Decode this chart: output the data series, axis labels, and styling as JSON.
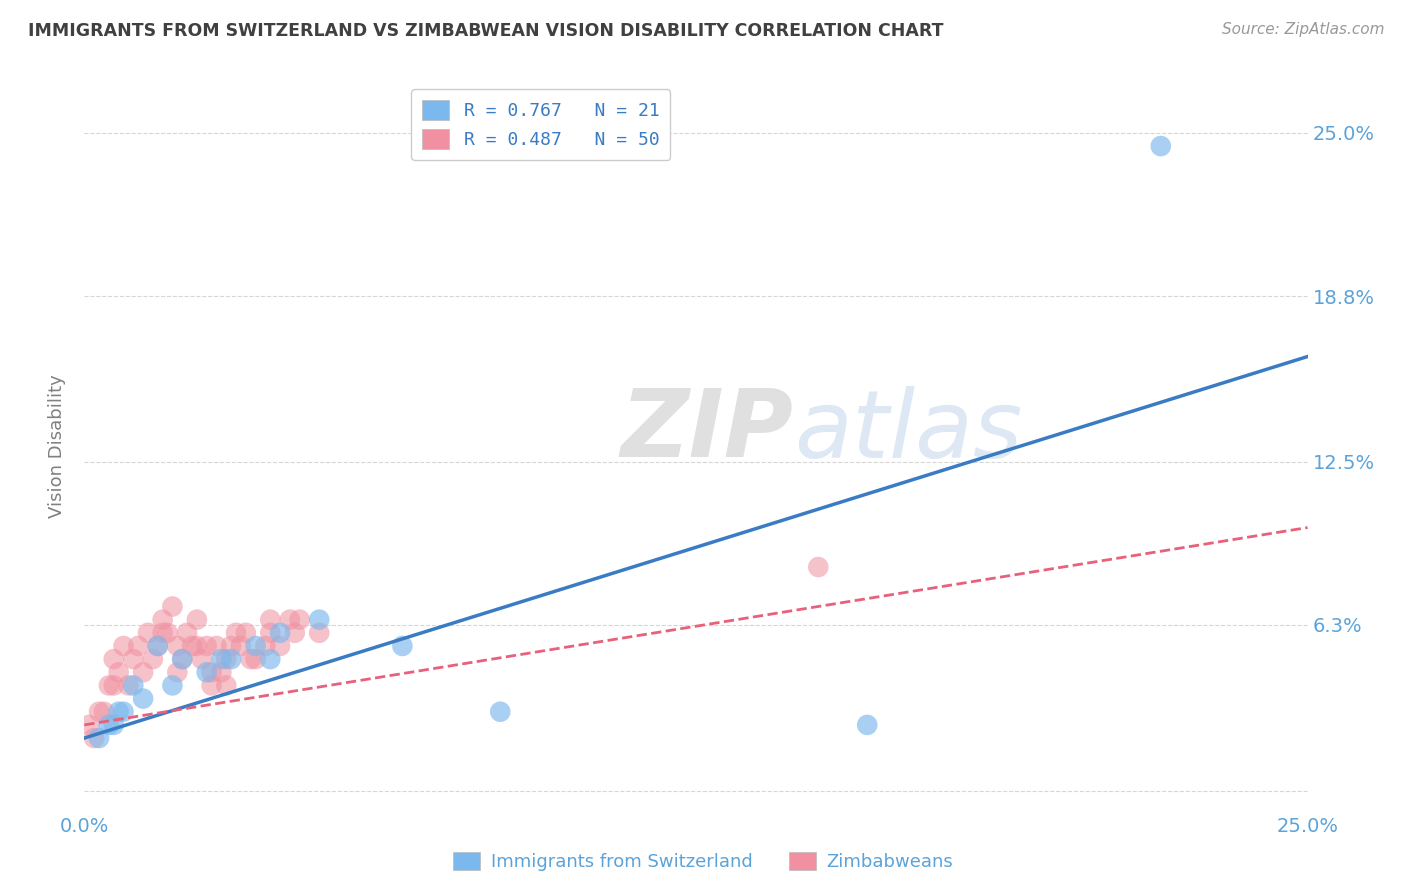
{
  "title": "IMMIGRANTS FROM SWITZERLAND VS ZIMBABWEAN VISION DISABILITY CORRELATION CHART",
  "source": "Source: ZipAtlas.com",
  "ylabel": "Vision Disability",
  "x_min": 0.0,
  "x_max": 0.25,
  "y_min": -0.008,
  "y_max": 0.27,
  "y_ticks": [
    0.0,
    0.063,
    0.125,
    0.188,
    0.25
  ],
  "y_tick_labels": [
    "",
    "6.3%",
    "12.5%",
    "18.8%",
    "25.0%"
  ],
  "x_ticks": [
    0.0,
    0.0625,
    0.125,
    0.1875,
    0.25
  ],
  "x_tick_labels": [
    "0.0%",
    "",
    "",
    "",
    "25.0%"
  ],
  "blue_R": 0.767,
  "blue_N": 21,
  "pink_R": 0.487,
  "pink_N": 50,
  "blue_color": "#7bb8ed",
  "pink_color": "#f090a0",
  "blue_line_color": "#3a7cc4",
  "pink_line_color": "#e8607a",
  "grid_color": "#cccccc",
  "background_color": "#ffffff",
  "title_color": "#404040",
  "axis_label_color": "#5ba3d9",
  "watermark_color": "#d0dff0",
  "watermark_text": "ZIPatlas",
  "blue_scatter_x": [
    0.005,
    0.008,
    0.01,
    0.015,
    0.02,
    0.025,
    0.03,
    0.035,
    0.04,
    0.22,
    0.012,
    0.018,
    0.028,
    0.038,
    0.048,
    0.065,
    0.085,
    0.003,
    0.007,
    0.006,
    0.16
  ],
  "blue_scatter_y": [
    0.025,
    0.03,
    0.04,
    0.055,
    0.05,
    0.045,
    0.05,
    0.055,
    0.06,
    0.245,
    0.035,
    0.04,
    0.05,
    0.05,
    0.065,
    0.055,
    0.03,
    0.02,
    0.03,
    0.025,
    0.025
  ],
  "pink_scatter_x": [
    0.002,
    0.004,
    0.005,
    0.006,
    0.007,
    0.008,
    0.009,
    0.01,
    0.011,
    0.012,
    0.013,
    0.014,
    0.015,
    0.016,
    0.017,
    0.018,
    0.019,
    0.02,
    0.021,
    0.022,
    0.023,
    0.024,
    0.025,
    0.026,
    0.027,
    0.028,
    0.029,
    0.03,
    0.031,
    0.032,
    0.033,
    0.035,
    0.037,
    0.038,
    0.04,
    0.042,
    0.044,
    0.048,
    0.003,
    0.006,
    0.016,
    0.019,
    0.023,
    0.026,
    0.029,
    0.034,
    0.038,
    0.043,
    0.15,
    0.001
  ],
  "pink_scatter_y": [
    0.02,
    0.03,
    0.04,
    0.05,
    0.045,
    0.055,
    0.04,
    0.05,
    0.055,
    0.045,
    0.06,
    0.05,
    0.055,
    0.065,
    0.06,
    0.07,
    0.055,
    0.05,
    0.06,
    0.055,
    0.065,
    0.05,
    0.055,
    0.04,
    0.055,
    0.045,
    0.05,
    0.055,
    0.06,
    0.055,
    0.06,
    0.05,
    0.055,
    0.06,
    0.055,
    0.065,
    0.065,
    0.06,
    0.03,
    0.04,
    0.06,
    0.045,
    0.055,
    0.045,
    0.04,
    0.05,
    0.065,
    0.06,
    0.085,
    0.025
  ],
  "blue_line_x0": 0.0,
  "blue_line_y0": 0.02,
  "blue_line_x1": 0.25,
  "blue_line_y1": 0.165,
  "pink_line_x0": 0.0,
  "pink_line_y0": 0.025,
  "pink_line_x1": 0.25,
  "pink_line_y1": 0.1
}
